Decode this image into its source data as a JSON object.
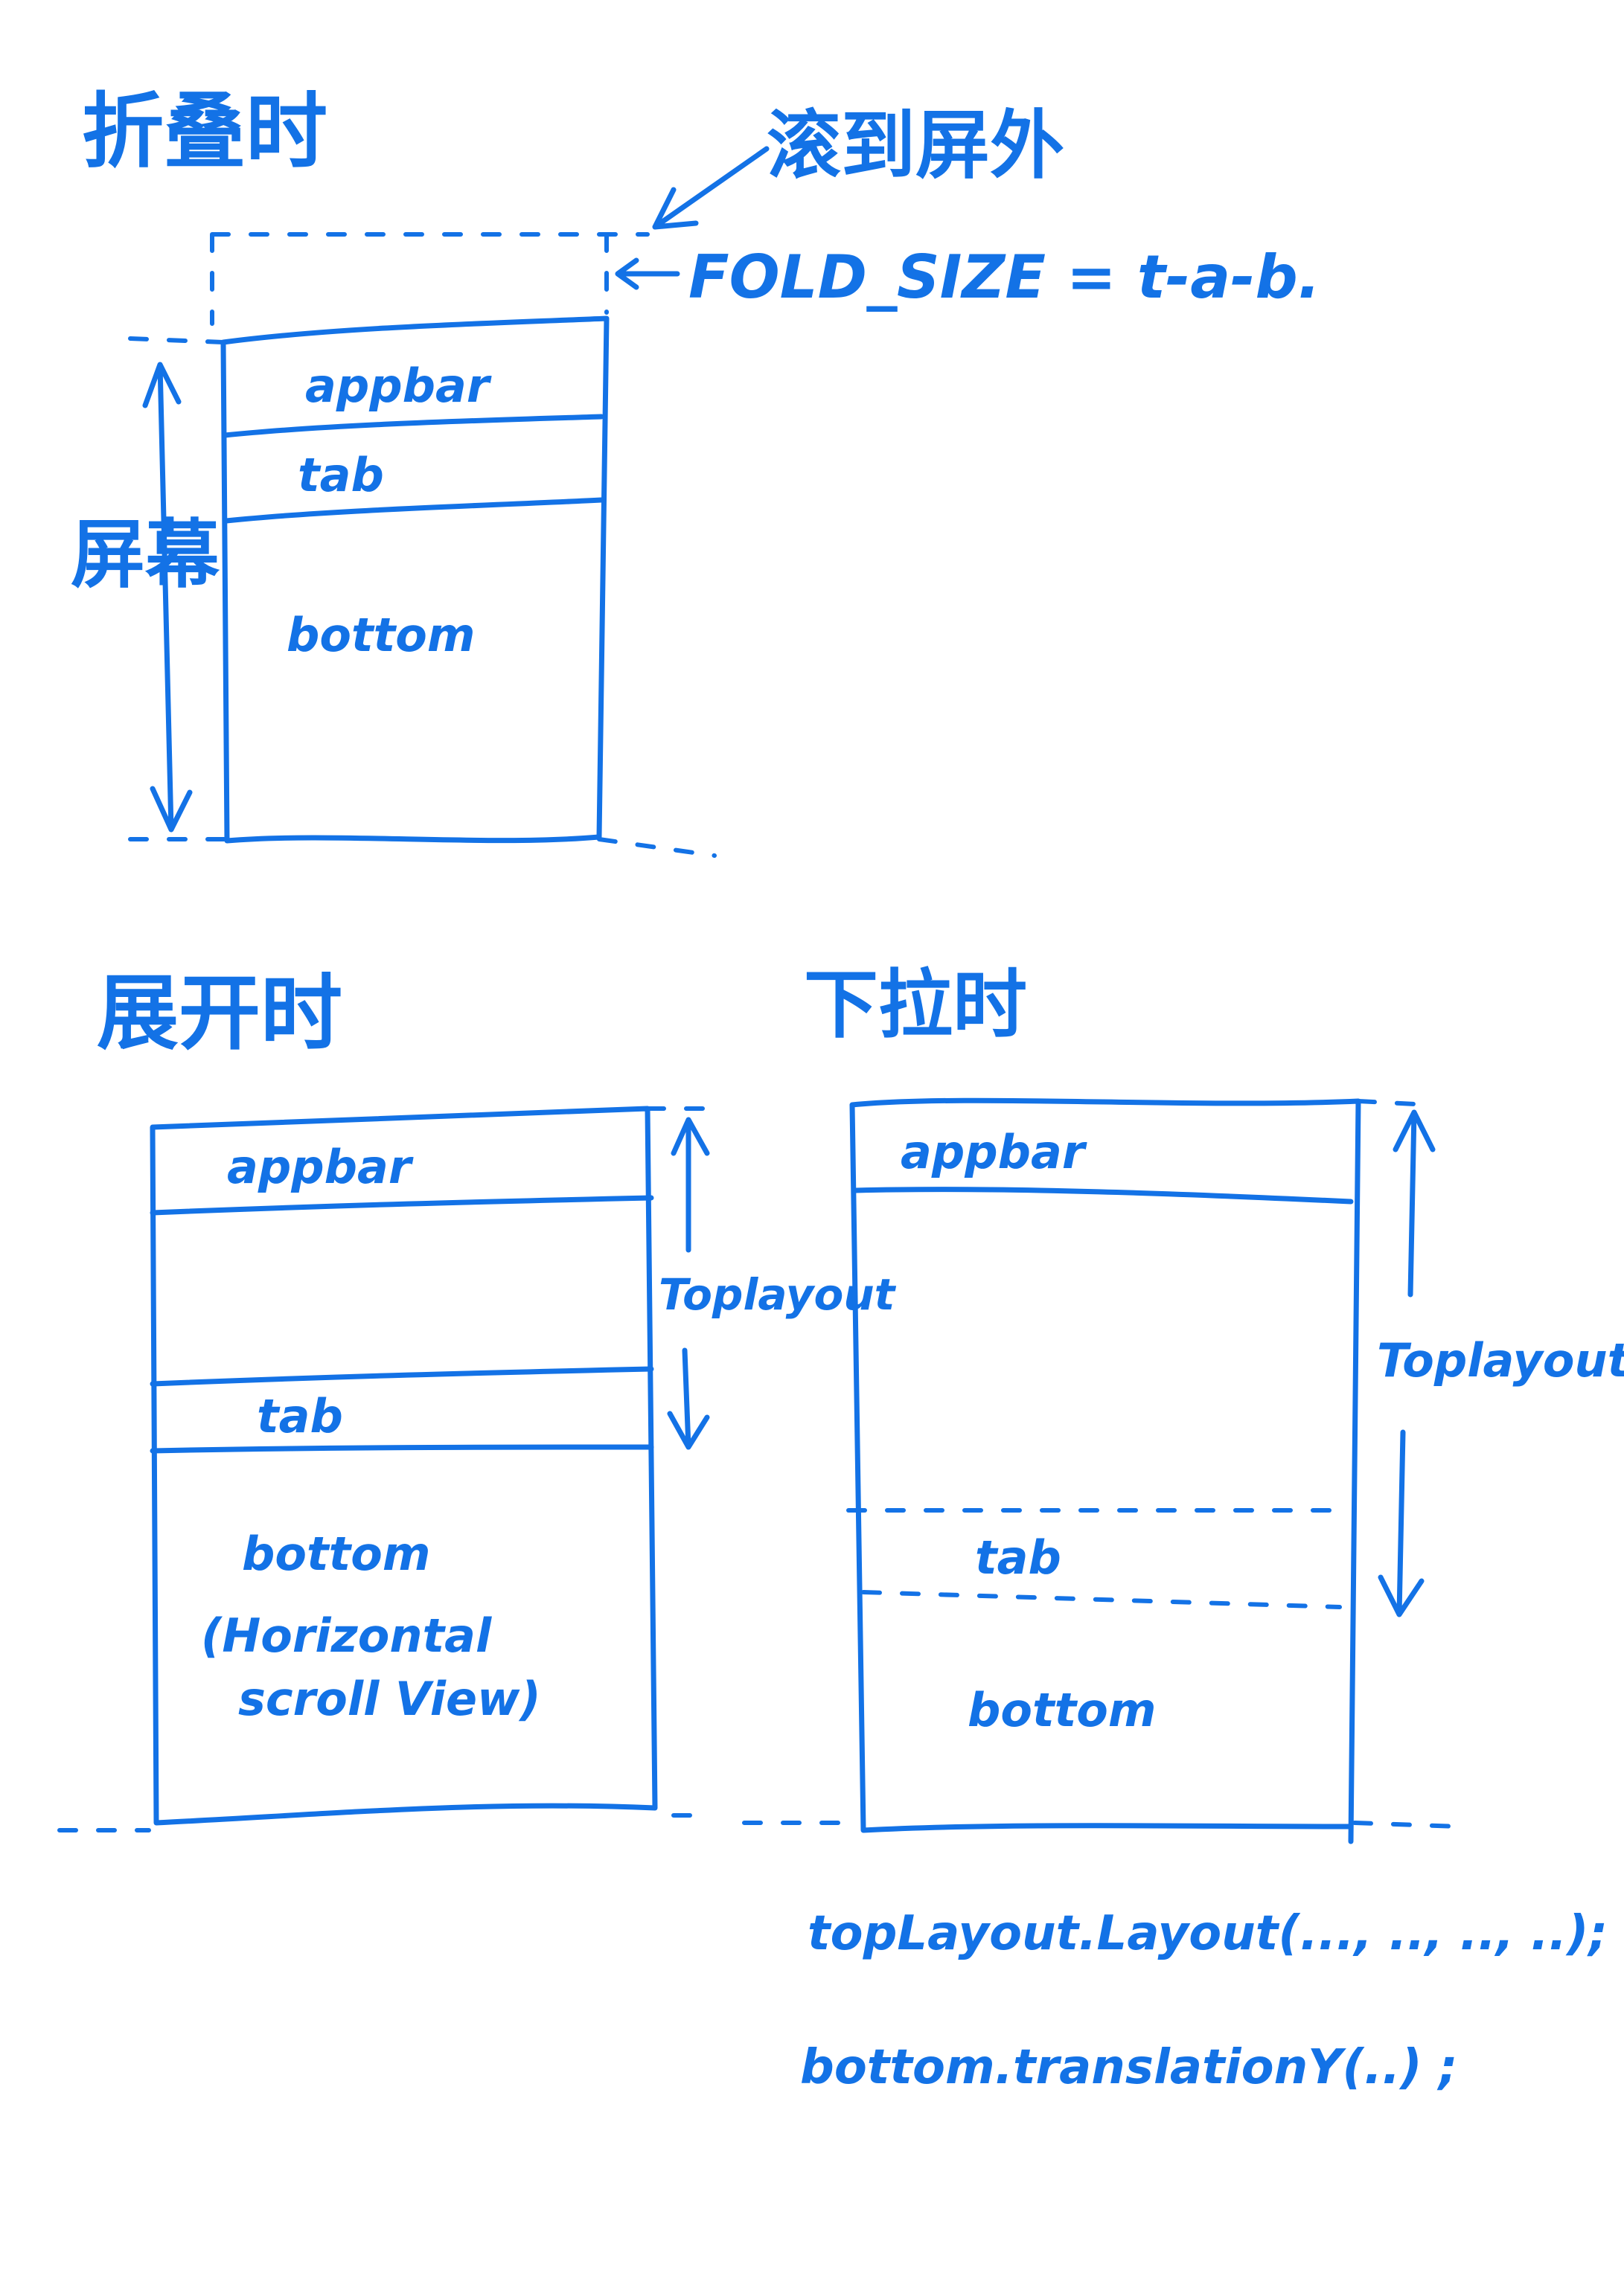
{
  "folded": {
    "title": "折叠时",
    "offscreen_note": "滚到屏外",
    "fold_size_label": "FOLD_SIZE = t-a-b.",
    "screen_label": "屏幕",
    "appbar": "appbar",
    "tab": "tab",
    "bottom": "bottom"
  },
  "expanded": {
    "title": "展开时",
    "appbar": "appbar",
    "toplayout": "Toplayout",
    "tab": "tab",
    "bottom": "bottom",
    "bottom_note_line1": "(Horizontal",
    "bottom_note_line2": "scroll View)"
  },
  "pulldown": {
    "title": "下拉时",
    "appbar": "appbar",
    "toplayout": "Toplayout",
    "tab": "tab",
    "bottom": "bottom"
  },
  "code": {
    "line1": "topLayout.Layout(..., .., .., ..);",
    "line2": "bottom.translationY(..) ;"
  },
  "colors": {
    "ink": "#1372E6",
    "background": "#FFFFFF"
  }
}
